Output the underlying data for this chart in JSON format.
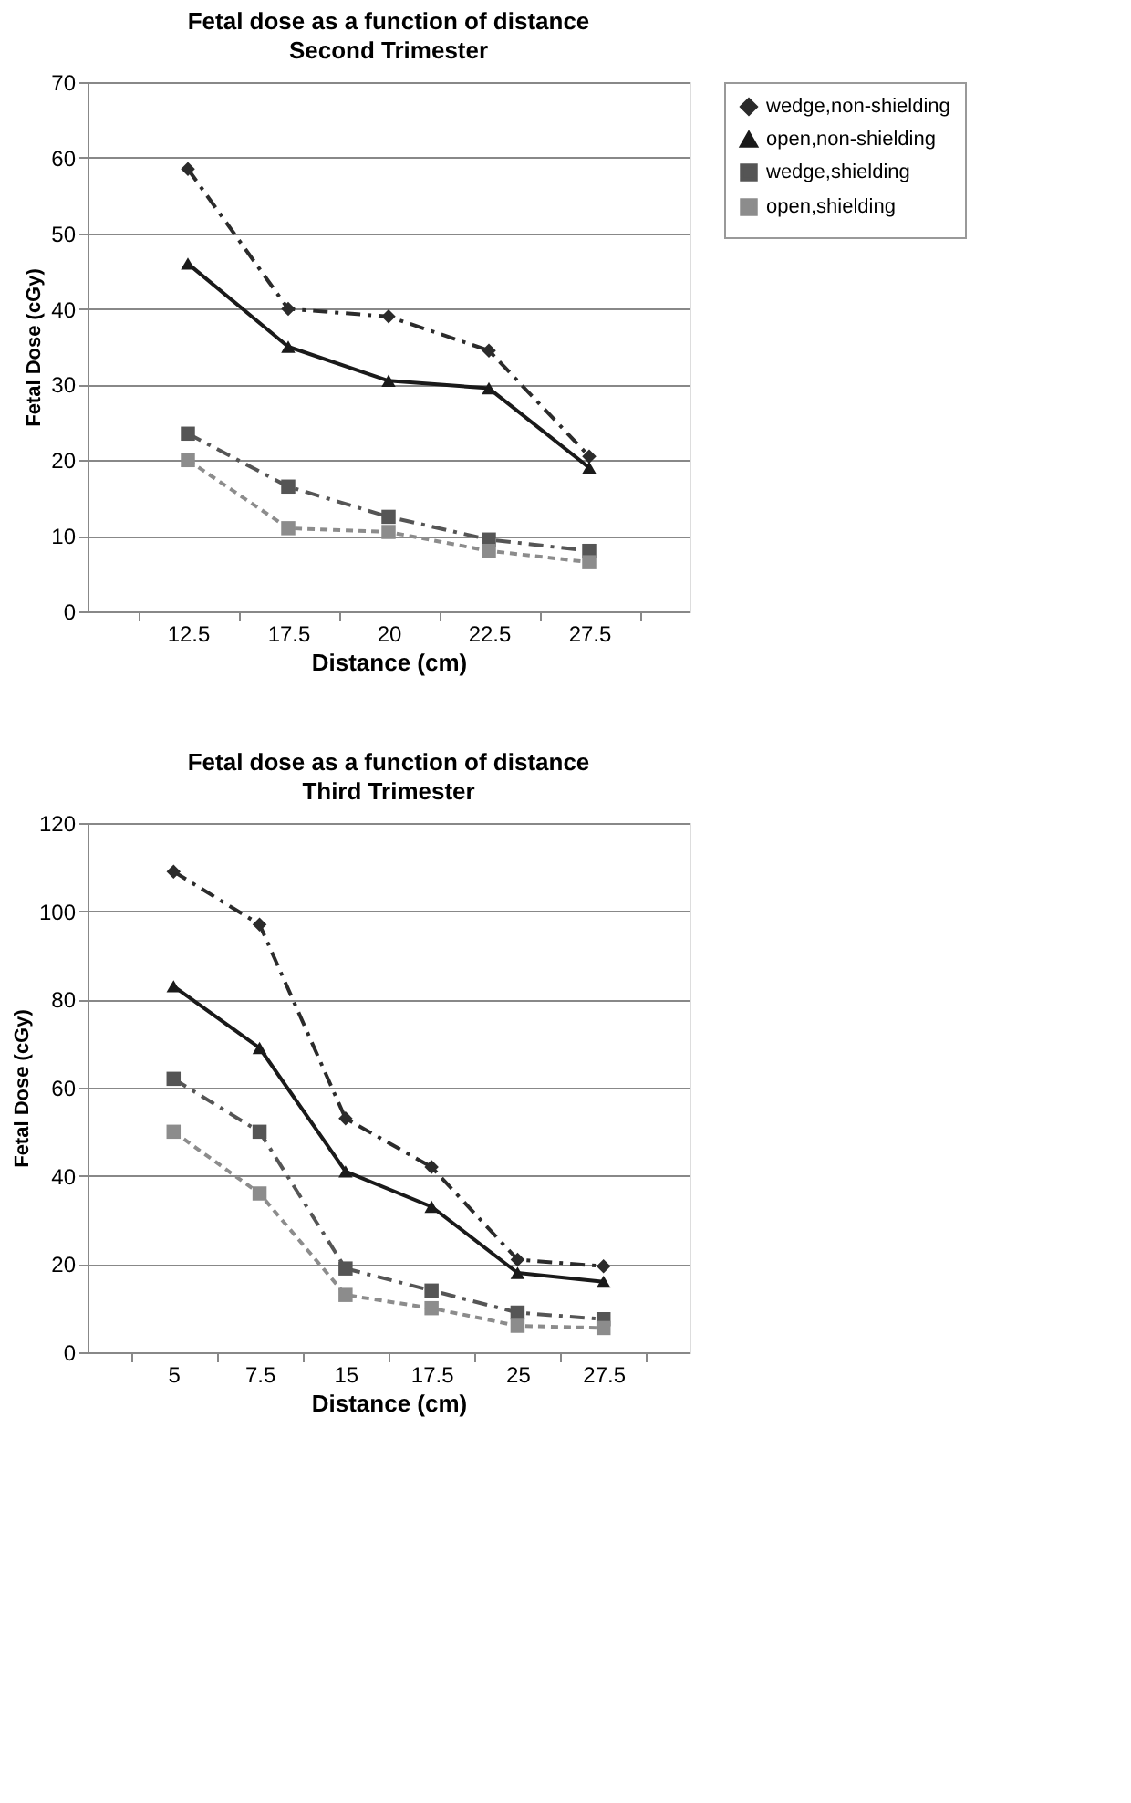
{
  "chart_data": [
    {
      "type": "line",
      "title": "Fetal dose as a function of distance",
      "subtitle": "Second Trimester",
      "xlabel": "Distance (cm)",
      "ylabel": "Fetal Dose (cGy)",
      "categories": [
        "12.5",
        "17.5",
        "20",
        "22.5",
        "27.5"
      ],
      "series": [
        {
          "name": "wedge,non-shielding",
          "color": "#2b2b2b",
          "marker": "diamond",
          "line_style": "dashed",
          "values": [
            58.5,
            40,
            39,
            34.5,
            20.5
          ]
        },
        {
          "name": "open,non-shielding",
          "color": "#1a1a1a",
          "marker": "triangle",
          "line_style": "solid",
          "values": [
            46,
            35,
            30.5,
            29.5,
            19
          ]
        },
        {
          "name": "wedge,shielding",
          "color": "#555555",
          "marker": "square",
          "line_style": "dashed",
          "values": [
            23.5,
            16.5,
            12.5,
            9.5,
            8
          ]
        },
        {
          "name": "open,shielding",
          "color": "#8c8c8c",
          "marker": "square",
          "line_style": "dotted",
          "values": [
            20,
            11,
            10.5,
            8,
            6.5
          ]
        }
      ],
      "ylim": [
        0,
        70
      ],
      "yticks": [
        0,
        10,
        20,
        30,
        40,
        50,
        60,
        70
      ],
      "grid": "y",
      "legend": "right"
    },
    {
      "type": "line",
      "title": "Fetal dose as a function of distance",
      "subtitle": "Third Trimester",
      "xlabel": "Distance (cm)",
      "ylabel": "Fetal Dose (cGy)",
      "categories": [
        "5",
        "7.5",
        "15",
        "17.5",
        "25",
        "27.5"
      ],
      "series": [
        {
          "name": "wedge,non-shielding",
          "color": "#2b2b2b",
          "marker": "diamond",
          "line_style": "dashed",
          "values": [
            109,
            97,
            53,
            42,
            21,
            19.5
          ]
        },
        {
          "name": "open,non-shielding",
          "color": "#1a1a1a",
          "marker": "triangle",
          "line_style": "solid",
          "values": [
            83,
            69,
            41,
            33,
            18,
            16
          ]
        },
        {
          "name": "wedge,shielding",
          "color": "#555555",
          "marker": "square",
          "line_style": "dashed",
          "values": [
            62,
            50,
            19,
            14,
            9,
            7.5
          ]
        },
        {
          "name": "open,shielding",
          "color": "#8c8c8c",
          "marker": "square",
          "line_style": "dotted",
          "values": [
            50,
            36,
            13,
            10,
            6,
            5.5
          ]
        }
      ],
      "ylim": [
        0,
        120
      ],
      "yticks": [
        0,
        20,
        40,
        60,
        80,
        100,
        120
      ],
      "grid": "y",
      "legend": "right"
    }
  ]
}
